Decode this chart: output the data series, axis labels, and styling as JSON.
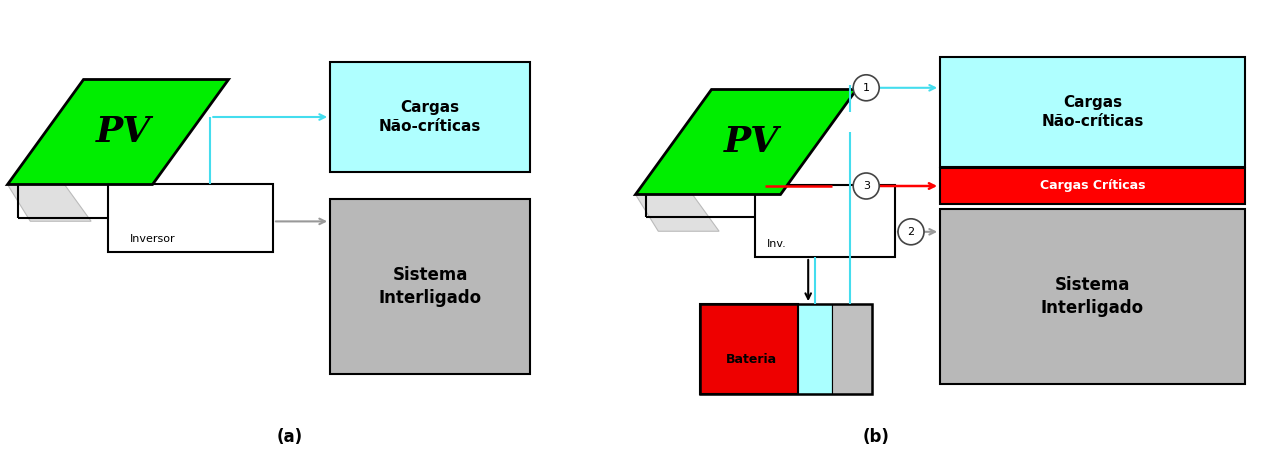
{
  "bg_color": "#ffffff",
  "fig_width": 12.82,
  "fig_height": 4.62,
  "label_a": "(a)",
  "label_b": "(b)",
  "pv_color": "#00ee00",
  "pv_text": "PV",
  "cyan_box_color": "#afffff",
  "red_box_color": "#ff0000",
  "gray_box_color": "#b8b8b8",
  "white_box_color": "#ffffff",
  "battery_red_color": "#ee0000",
  "battery_cyan_color": "#aaffff",
  "battery_gray_color": "#c0c0c0",
  "arrow_cyan_color": "#44ddee",
  "arrow_gray_color": "#999999",
  "arrow_red_color": "#ff0000",
  "arrow_black_color": "#000000"
}
